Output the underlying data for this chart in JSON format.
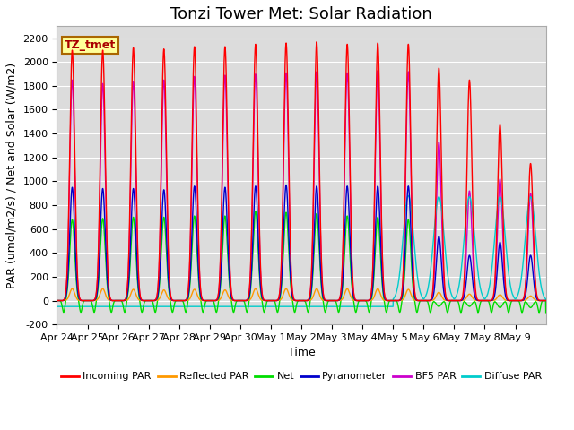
{
  "title": "Tonzi Tower Met: Solar Radiation",
  "xlabel": "Time",
  "ylabel": "PAR (umol/m2/s) / Net and Solar (W/m2)",
  "ylim": [
    -200,
    2300
  ],
  "yticks": [
    -200,
    0,
    200,
    400,
    600,
    800,
    1000,
    1200,
    1400,
    1600,
    1800,
    2000,
    2200
  ],
  "plot_bg_color": "#dcdcdc",
  "fig_bg_color": "#ffffff",
  "label_box_text": "TZ_tmet",
  "label_box_color": "#ffff99",
  "label_box_border": "#aa6600",
  "legend_entries": [
    "Incoming PAR",
    "Reflected PAR",
    "Net",
    "Pyranometer",
    "BF5 PAR",
    "Diffuse PAR"
  ],
  "legend_colors": [
    "#ff0000",
    "#ff9900",
    "#00dd00",
    "#0000cc",
    "#cc00cc",
    "#00cccc"
  ],
  "line_colors": {
    "incoming_par": "#ff0000",
    "reflected_par": "#ff9900",
    "net": "#00dd00",
    "pyranometer": "#0000cc",
    "bf5_par": "#cc00cc",
    "diffuse_par": "#00cccc"
  },
  "n_days": 16,
  "peaks_incoming": [
    2100,
    2100,
    2120,
    2110,
    2130,
    2130,
    2150,
    2160,
    2170,
    2150,
    2160,
    2150,
    1950,
    1850,
    1480,
    1150
  ],
  "peaks_bf5": [
    1850,
    1820,
    1840,
    1850,
    1880,
    1890,
    1900,
    1910,
    1920,
    1910,
    1930,
    1920,
    1330,
    920,
    1020,
    900
  ],
  "peaks_pyranometer": [
    950,
    940,
    940,
    930,
    960,
    950,
    960,
    970,
    960,
    960,
    960,
    960,
    540,
    380,
    490,
    380
  ],
  "peaks_net": [
    680,
    690,
    700,
    700,
    710,
    710,
    750,
    740,
    730,
    710,
    700,
    680,
    -50,
    -50,
    -60,
    -60
  ],
  "peaks_reflected": [
    100,
    100,
    95,
    90,
    95,
    90,
    100,
    100,
    100,
    100,
    100,
    95,
    70,
    55,
    50,
    40
  ],
  "peaks_diffuse": [
    -50,
    -50,
    -50,
    -50,
    -50,
    -50,
    -50,
    -50,
    -50,
    -50,
    -50,
    880,
    870,
    870,
    870,
    870
  ],
  "net_night": -100,
  "diffuse_night": -50,
  "date_labels": [
    "Apr 24",
    "Apr 25",
    "Apr 26",
    "Apr 27",
    "Apr 28",
    "Apr 29",
    "Apr 30",
    "May 1",
    "May 2",
    "May 3",
    "May 4",
    "May 5",
    "May 6",
    "May 7",
    "May 8",
    "May 9"
  ],
  "title_fontsize": 13,
  "axis_label_fontsize": 9,
  "tick_fontsize": 8,
  "legend_fontsize": 8,
  "grid_color": "#ffffff",
  "line_width": 1.0
}
